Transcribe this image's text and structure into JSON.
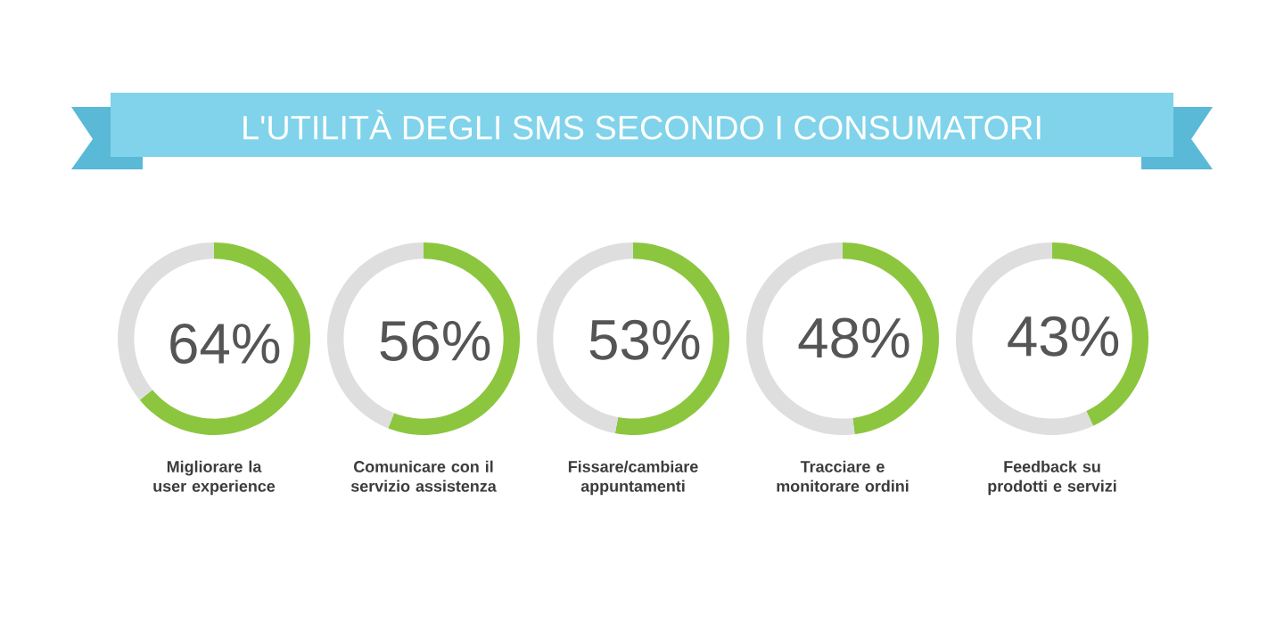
{
  "chart_data": [
    {
      "type": "donut",
      "title": "L'UTILITÀ DEGLI SMS SECONDO I CONSUMATORI",
      "xlabel": "Migliorare la user experience",
      "categories": [
        null,
        null
      ],
      "values": [
        64,
        36
      ],
      "colors": [
        "#8cc63f",
        "#dedede"
      ],
      "value_labels": [
        "64%",
        null
      ]
    },
    {
      "type": "donut",
      "xlabel": "Comunicare con il servizio assistenza",
      "categories": [
        null,
        null
      ],
      "values": [
        56,
        44
      ],
      "colors": [
        "#8cc63f",
        "#dedede"
      ],
      "value_labels": [
        "56%",
        null
      ]
    },
    {
      "type": "donut",
      "xlabel": "Fissare/cambiare appuntamenti",
      "categories": [
        null,
        null
      ],
      "values": [
        53,
        47
      ],
      "colors": [
        "#8cc63f",
        "#dedede"
      ],
      "value_labels": [
        "53%",
        null
      ]
    },
    {
      "type": "donut",
      "xlabel": "Tracciare e monitorare ordini",
      "categories": [
        null,
        null
      ],
      "values": [
        48,
        52
      ],
      "colors": [
        "#8cc63f",
        "#dedede"
      ],
      "value_labels": [
        "48%",
        null
      ]
    },
    {
      "type": "donut",
      "xlabel": "Feedback su prodotti e servizi",
      "categories": [
        null,
        null
      ],
      "values": [
        43,
        57
      ],
      "colors": [
        "#8cc63f",
        "#dedede"
      ],
      "value_labels": [
        "43%",
        null
      ]
    }
  ]
}
